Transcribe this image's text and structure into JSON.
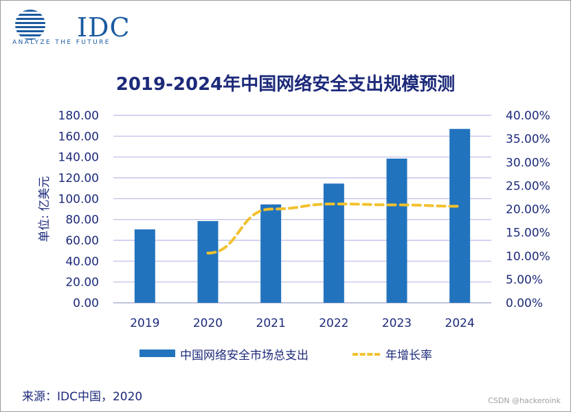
{
  "brand": {
    "logo_text": "IDC",
    "tagline": "ANALYZE THE FUTURE",
    "color": "#1a5aa0"
  },
  "chart_data": {
    "type": "bar",
    "title": "2019-2024年中国网络安全支出规模预测",
    "categories": [
      "2019",
      "2020",
      "2021",
      "2022",
      "2023",
      "2024"
    ],
    "ylabel": "单位: 亿美元",
    "ylim": [
      0,
      180
    ],
    "yticks": [
      "0.00",
      "20.00",
      "40.00",
      "60.00",
      "80.00",
      "100.00",
      "120.00",
      "140.00",
      "160.00",
      "180.00"
    ],
    "y2lim": [
      0,
      40
    ],
    "y2ticks": [
      "0.00%",
      "5.00%",
      "10.00%",
      "15.00%",
      "20.00%",
      "25.00%",
      "30.00%",
      "35.00%",
      "40.00%"
    ],
    "series": [
      {
        "name": "中国网络安全市场总支出",
        "kind": "bar",
        "axis": "left",
        "color": "#2273bd",
        "values": [
          70.5,
          78.5,
          94.5,
          114.5,
          138.5,
          167.0
        ]
      },
      {
        "name": "年增长率",
        "kind": "line",
        "axis": "right",
        "style": "dashed",
        "color": "#f2c12e",
        "values": [
          null,
          10.6,
          20.0,
          21.1,
          20.9,
          20.6
        ]
      }
    ],
    "grid": true,
    "legend_position": "bottom"
  },
  "footer": {
    "source": "来源：IDC中国，2020",
    "watermark": "CSDN @hackeroink"
  }
}
